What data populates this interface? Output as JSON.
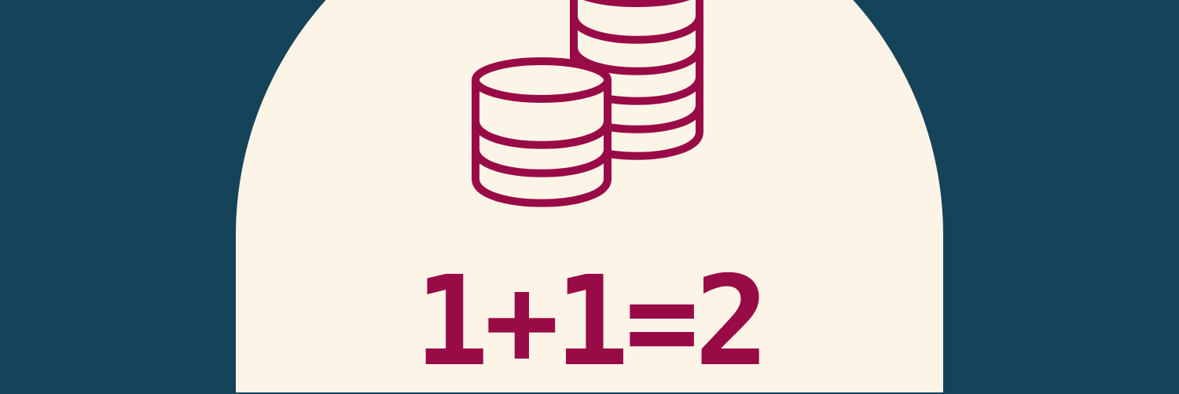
{
  "colors": {
    "background": "#15435a",
    "arch": "#fdf4e8",
    "accent": "#990b46"
  },
  "icon": {
    "name": "coin-stack-icon"
  },
  "equation": {
    "text": "1+1=2"
  }
}
